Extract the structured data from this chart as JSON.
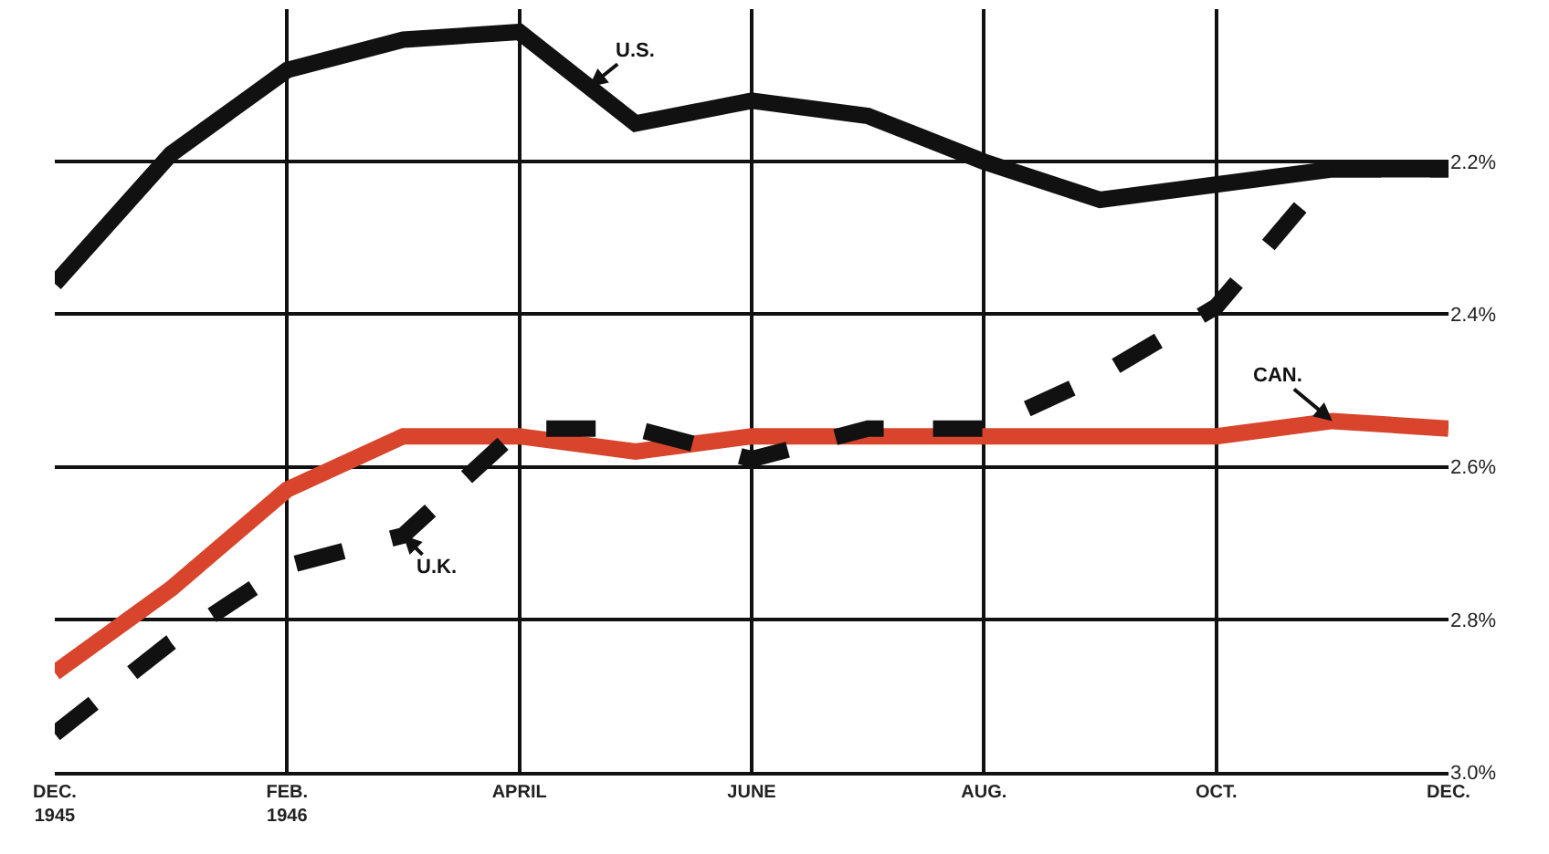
{
  "chart_data": {
    "type": "line",
    "categories": [
      "DEC.\n1945",
      null,
      "FEB.\n1946",
      null,
      "APRIL",
      null,
      "JUNE",
      null,
      "AUG.",
      null,
      "OCT.",
      null,
      "DEC."
    ],
    "series": [
      {
        "name": "U.S.",
        "color": "#111111",
        "line_style": "solid",
        "values": [
          2.36,
          2.19,
          2.08,
          2.04,
          2.03,
          2.15,
          2.12,
          2.14,
          2.2,
          2.25,
          2.23,
          2.21,
          2.21
        ]
      },
      {
        "name": "CAN.",
        "color": "#d8452c",
        "line_style": "solid",
        "values": [
          2.87,
          2.76,
          2.63,
          2.56,
          2.56,
          2.58,
          2.56,
          2.56,
          2.56,
          2.56,
          2.56,
          2.54,
          2.55
        ]
      },
      {
        "name": "U.K.",
        "color": "#111111",
        "line_style": "dashed",
        "values": [
          2.95,
          2.83,
          2.73,
          2.69,
          2.55,
          2.55,
          2.59,
          2.55,
          2.55,
          2.48,
          2.39,
          2.21,
          2.21
        ]
      }
    ],
    "ylim": [
      3.0,
      2.0
    ],
    "yticks": [
      {
        "value": 2.2,
        "label": "2.2%"
      },
      {
        "value": 2.4,
        "label": "2.4%"
      },
      {
        "value": 2.6,
        "label": "2.6%"
      },
      {
        "value": 2.8,
        "label": "2.8%"
      },
      {
        "value": 3.0,
        "label": "3.0%"
      }
    ],
    "grid": true,
    "marker": "none"
  }
}
